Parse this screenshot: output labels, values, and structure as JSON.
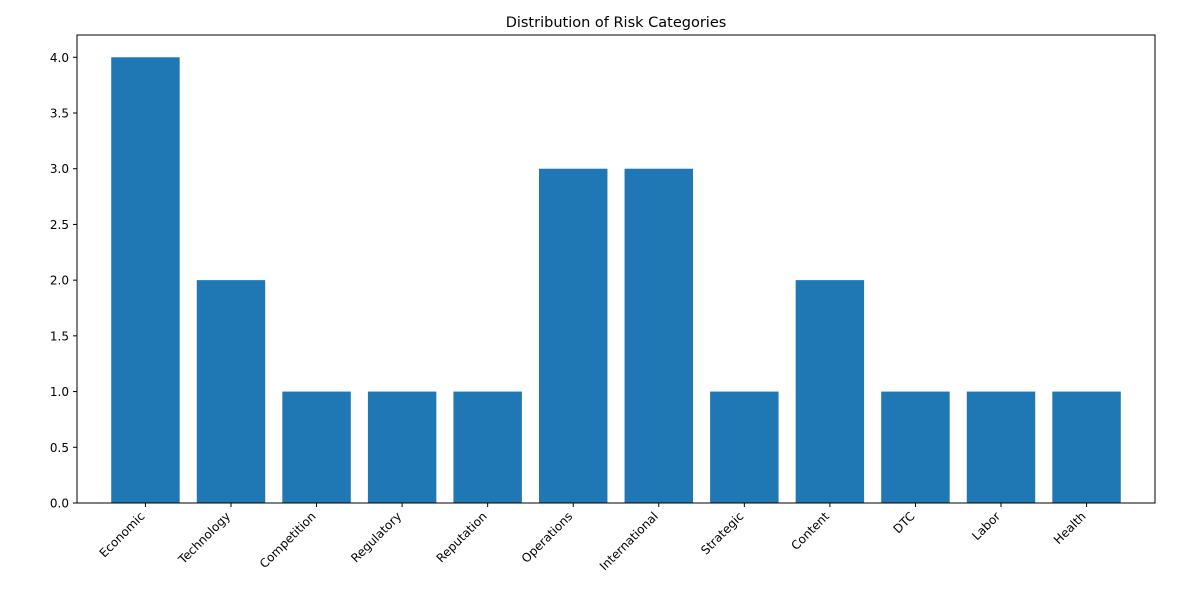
{
  "chart_data": {
    "type": "bar",
    "title": "Distribution of Risk Categories",
    "xlabel": "",
    "ylabel": "",
    "categories": [
      "Economic",
      "Technology",
      "Competition",
      "Regulatory",
      "Reputation",
      "Operations",
      "International",
      "Strategic",
      "Content",
      "DTC",
      "Labor",
      "Health"
    ],
    "values": [
      4,
      2,
      1,
      1,
      1,
      3,
      3,
      1,
      2,
      1,
      1,
      1
    ],
    "ylim": [
      0,
      4.2
    ],
    "yticks": [
      "0.0",
      "0.5",
      "1.0",
      "1.5",
      "2.0",
      "2.5",
      "3.0",
      "3.5",
      "4.0"
    ],
    "grid": false,
    "bar_color": "#1f77b4"
  }
}
